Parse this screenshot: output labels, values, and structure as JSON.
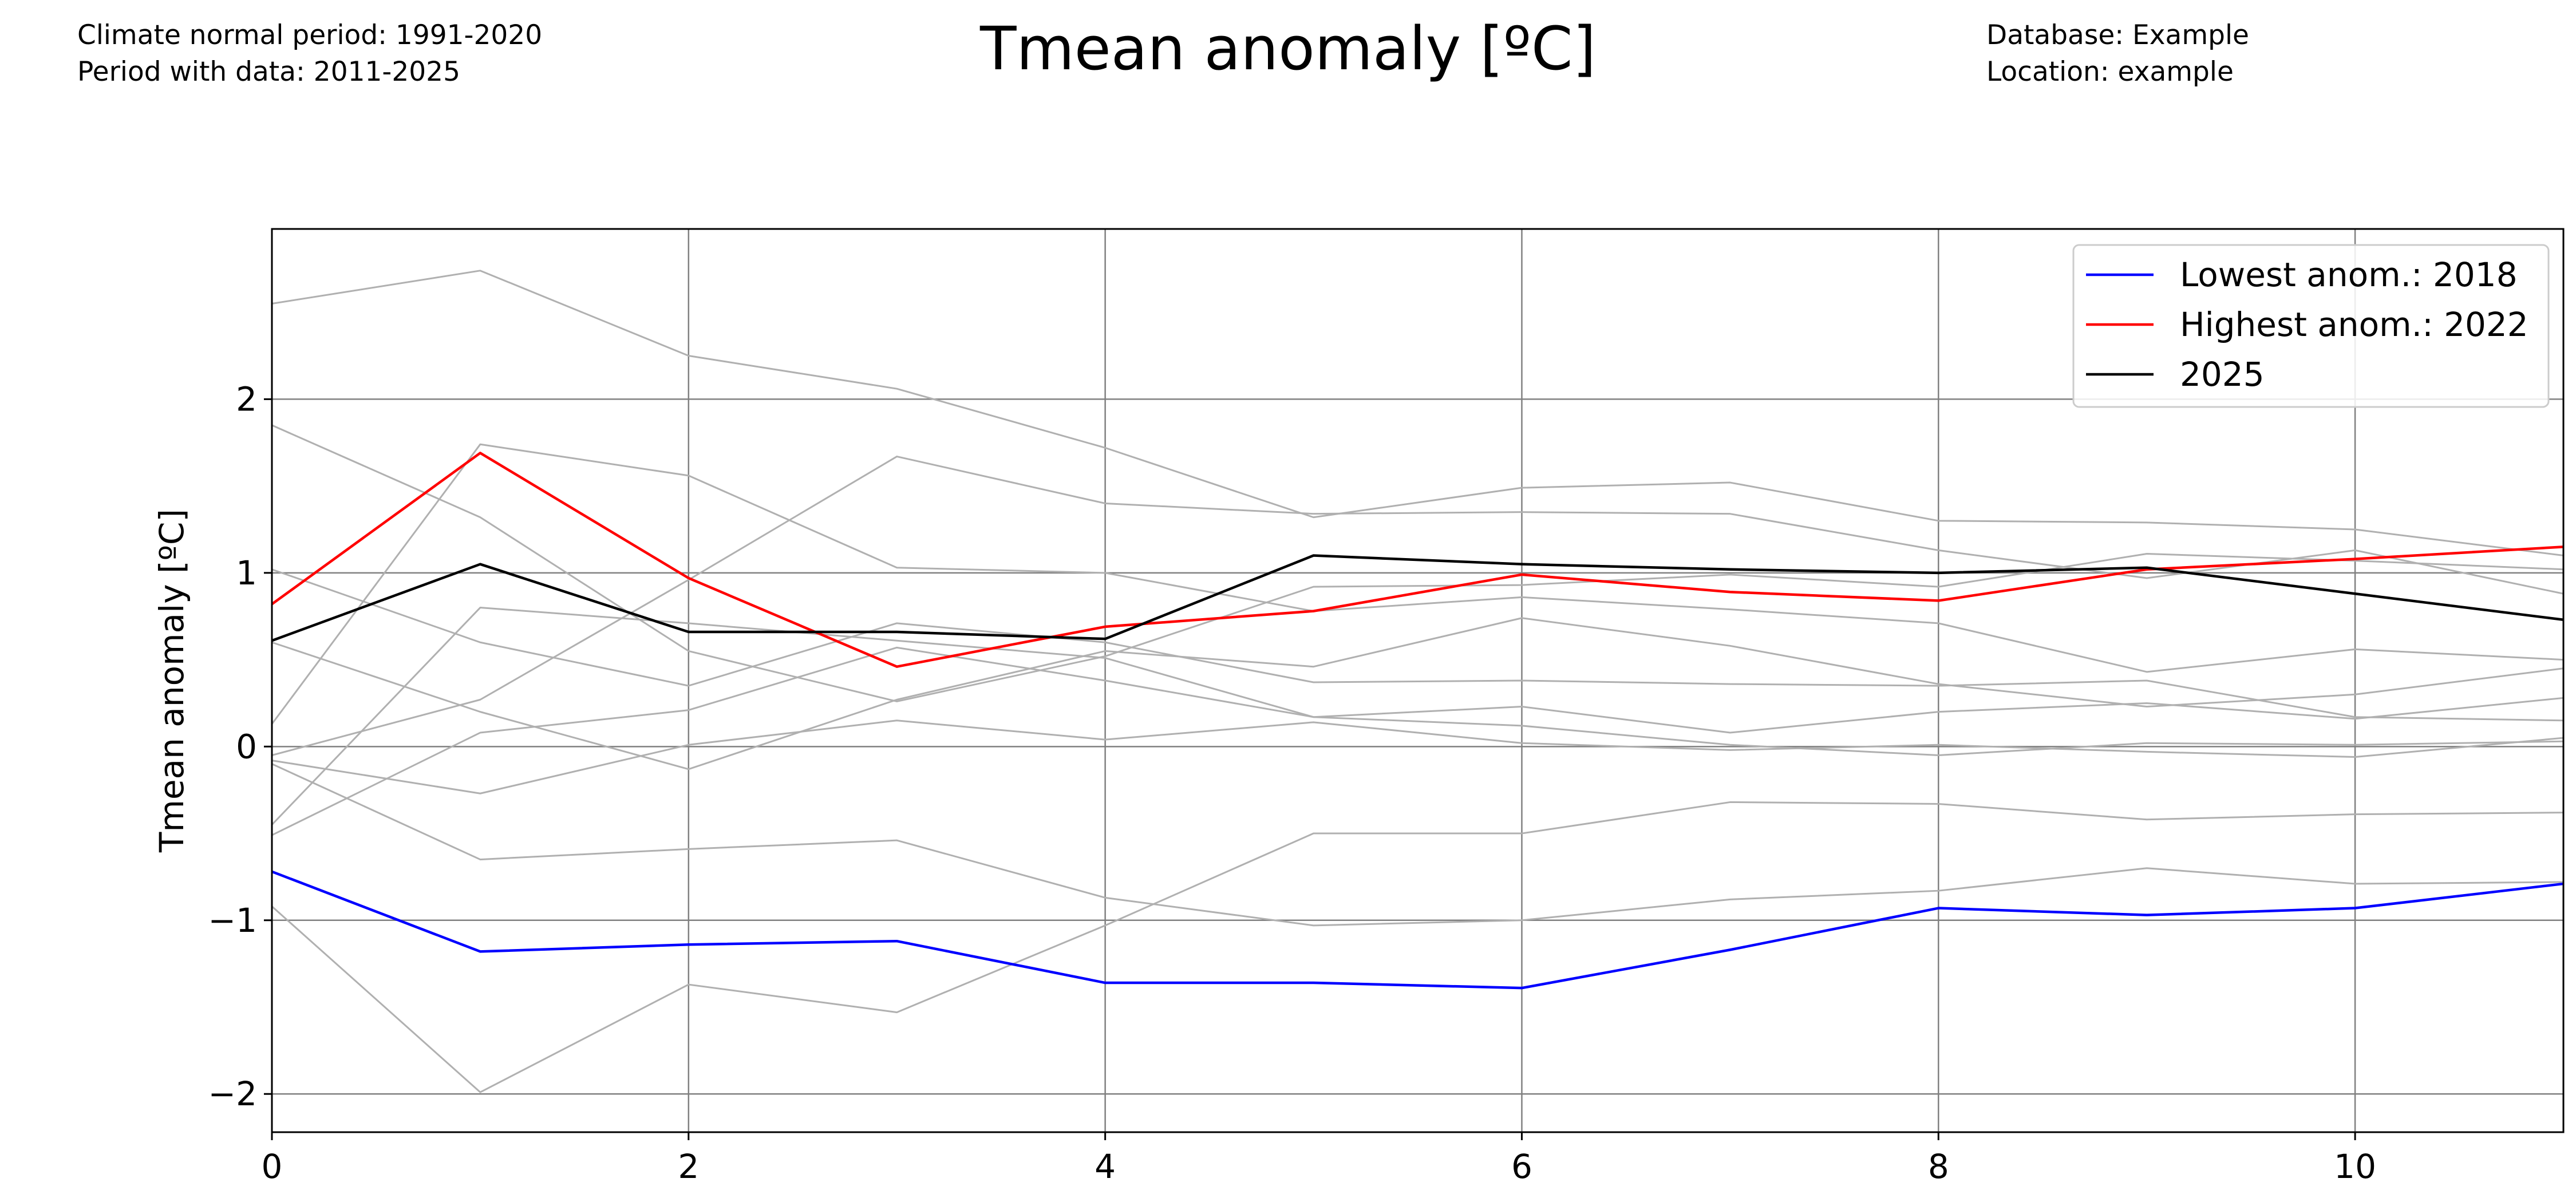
{
  "header": {
    "left_lines": [
      "Climate normal period: 1991-2020",
      "Period with data: 2011-2025"
    ],
    "right_lines": [
      "Database: Example",
      "Location: example"
    ]
  },
  "chart_data": {
    "type": "line",
    "title": "Tmean anomaly [ºC]",
    "xlabel": "",
    "ylabel": "Tmean anomaly [ºC]",
    "xlim": [
      0,
      11
    ],
    "ylim": [
      -2.22,
      2.98
    ],
    "xticks": [
      0,
      2,
      4,
      6,
      8,
      10
    ],
    "yticks": [
      -2,
      -1,
      0,
      1,
      2
    ],
    "ytick_labels": [
      "−2",
      "−1",
      "0",
      "1",
      "2"
    ],
    "grid": true,
    "legend_position": "top-right",
    "x": [
      0,
      1,
      2,
      3,
      4,
      5,
      6,
      7,
      8,
      9,
      10,
      11
    ],
    "series": [
      {
        "name": "Lowest anom.: 2018",
        "color": "#0000ff",
        "highlight": true,
        "values": [
          -0.72,
          -1.18,
          -1.14,
          -1.12,
          -1.36,
          -1.36,
          -1.39,
          -1.17,
          -0.93,
          -0.97,
          -0.93,
          -0.79
        ]
      },
      {
        "name": "Highest anom.: 2022",
        "color": "#ff0000",
        "highlight": true,
        "values": [
          0.82,
          1.69,
          0.97,
          0.46,
          0.69,
          0.78,
          0.99,
          0.89,
          0.84,
          1.02,
          1.08,
          1.15
        ]
      },
      {
        "name": "2025",
        "color": "#000000",
        "highlight": true,
        "values": [
          0.61,
          1.05,
          0.66,
          0.66,
          0.62,
          1.1,
          1.05,
          1.02,
          1.0,
          1.03,
          0.88,
          0.73
        ]
      },
      {
        "color": "#b0b0b0",
        "values": [
          2.55,
          2.74,
          2.25,
          2.06,
          1.72,
          1.32,
          1.49,
          1.52,
          1.3,
          1.29,
          1.25,
          1.1
        ]
      },
      {
        "color": "#b0b0b0",
        "values": [
          1.85,
          1.32,
          0.55,
          0.26,
          0.52,
          0.92,
          0.93,
          0.99,
          0.92,
          1.11,
          1.07,
          1.02
        ]
      },
      {
        "color": "#b0b0b0",
        "values": [
          1.02,
          0.6,
          0.35,
          0.71,
          0.6,
          0.37,
          0.38,
          0.36,
          0.35,
          0.38,
          0.17,
          0.15
        ]
      },
      {
        "color": "#b0b0b0",
        "values": [
          0.6,
          0.2,
          -0.13,
          0.27,
          0.55,
          0.46,
          0.74,
          0.58,
          0.36,
          0.23,
          0.3,
          0.45
        ]
      },
      {
        "color": "#b0b0b0",
        "values": [
          0.13,
          1.74,
          1.56,
          1.03,
          1.0,
          0.78,
          0.86,
          0.79,
          0.71,
          0.43,
          0.56,
          0.5
        ]
      },
      {
        "color": "#b0b0b0",
        "values": [
          -0.05,
          0.27,
          0.96,
          1.67,
          1.4,
          1.34,
          1.35,
          1.34,
          1.13,
          0.97,
          1.13,
          0.88
        ]
      },
      {
        "color": "#b0b0b0",
        "values": [
          -0.45,
          0.8,
          0.71,
          0.61,
          0.51,
          0.17,
          0.12,
          0.01,
          -0.05,
          0.02,
          0.01,
          0.03
        ]
      },
      {
        "color": "#b0b0b0",
        "values": [
          -0.51,
          0.08,
          0.21,
          0.57,
          0.38,
          0.17,
          0.23,
          0.08,
          0.2,
          0.25,
          0.16,
          0.28
        ]
      },
      {
        "color": "#b0b0b0",
        "values": [
          -0.08,
          -0.27,
          0.01,
          0.15,
          0.04,
          0.14,
          0.02,
          -0.02,
          0.01,
          -0.03,
          -0.06,
          0.05
        ]
      },
      {
        "color": "#b0b0b0",
        "values": [
          -0.1,
          -0.65,
          -0.59,
          -0.54,
          -0.87,
          -1.03,
          -1.0,
          -0.88,
          -0.83,
          -0.7,
          -0.79,
          -0.78
        ]
      },
      {
        "color": "#b0b0b0",
        "values": [
          -0.92,
          -1.99,
          -1.37,
          -1.53,
          -1.03,
          -0.5,
          -0.5,
          -0.32,
          -0.33,
          -0.42,
          -0.39,
          -0.38
        ]
      }
    ]
  }
}
